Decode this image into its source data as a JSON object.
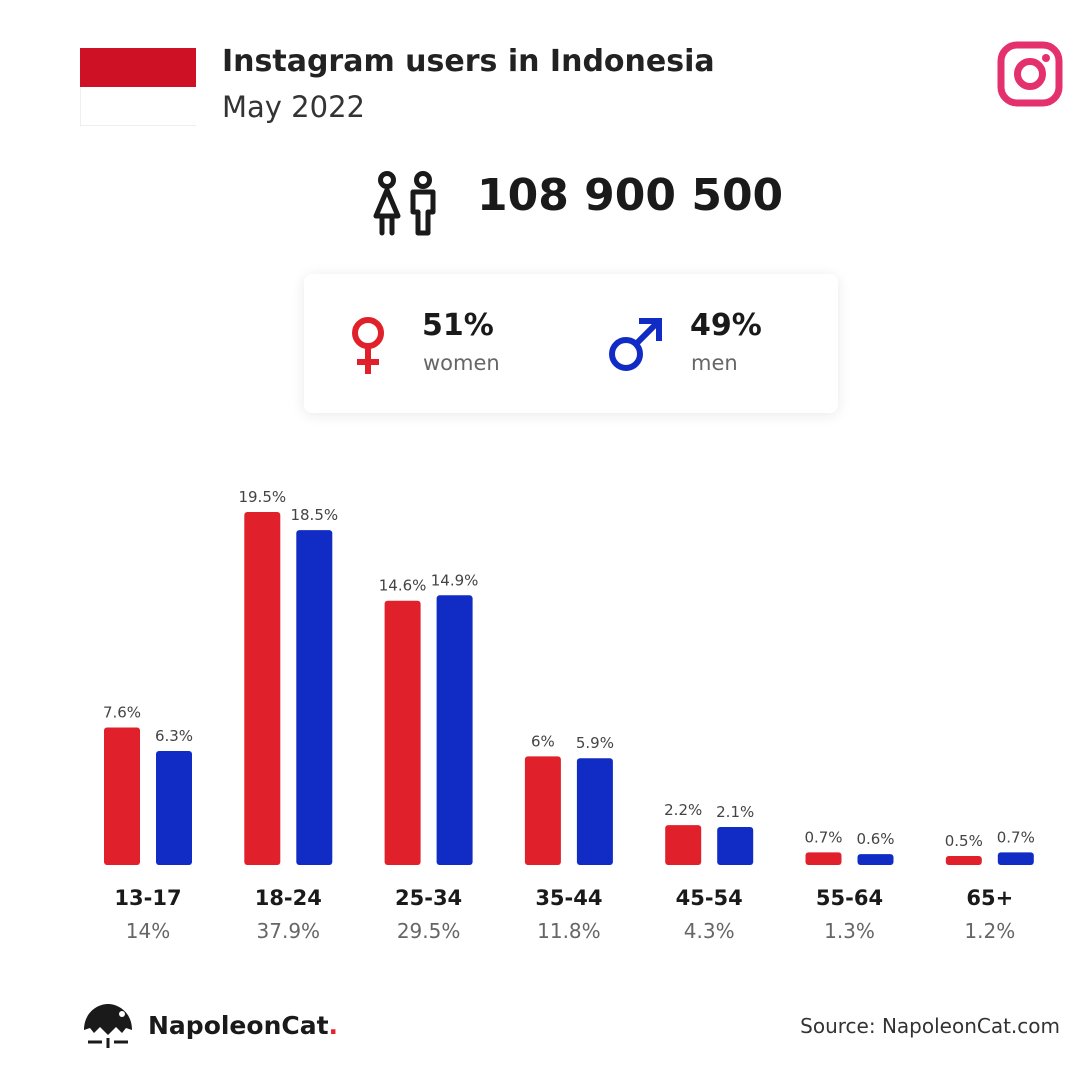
{
  "header": {
    "title": "Instagram users in Indonesia",
    "subtitle": "May 2022"
  },
  "total_users": "108 900 500",
  "gender": {
    "women": {
      "percent": "51%",
      "label": "women"
    },
    "men": {
      "percent": "49%",
      "label": "men"
    }
  },
  "colors": {
    "women": "#e0212b",
    "men": "#102cc4",
    "instagram": "#e4306c",
    "flag_red": "#cf1126"
  },
  "chart_data": {
    "type": "bar",
    "categories": [
      "13-17",
      "18-24",
      "25-34",
      "35-44",
      "45-54",
      "55-64",
      "65+"
    ],
    "category_totals": [
      "14%",
      "37.9%",
      "29.5%",
      "11.8%",
      "4.3%",
      "1.3%",
      "1.2%"
    ],
    "series": [
      {
        "key": "women",
        "values": [
          7.6,
          19.5,
          14.6,
          6,
          2.2,
          0.7,
          0.5
        ],
        "labels": [
          "7.6%",
          "19.5%",
          "14.6%",
          "6%",
          "2.2%",
          "0.7%",
          "0.5%"
        ]
      },
      {
        "key": "men",
        "values": [
          6.3,
          18.5,
          14.9,
          5.9,
          2.1,
          0.6,
          0.7
        ],
        "labels": [
          "6.3%",
          "18.5%",
          "14.9%",
          "5.9%",
          "2.1%",
          "0.6%",
          "0.7%"
        ]
      }
    ],
    "ylim": [
      0,
      20
    ],
    "grid": false
  },
  "footer": {
    "brand": "NapoleonCat",
    "brand_dot": ".",
    "source": "Source: NapoleonCat.com"
  }
}
